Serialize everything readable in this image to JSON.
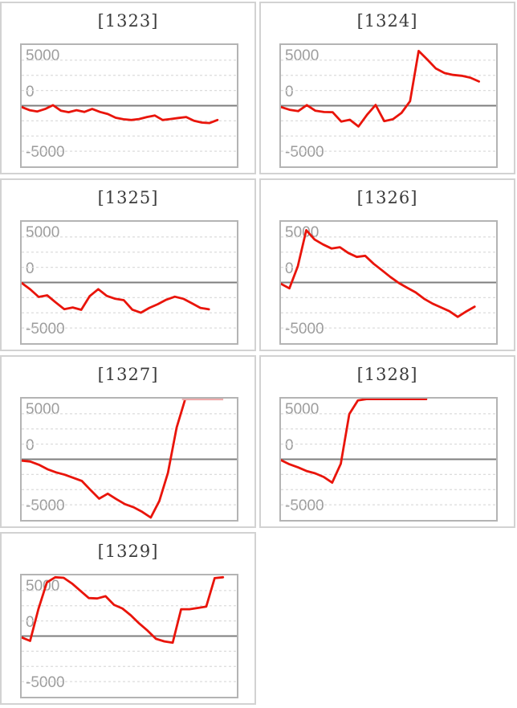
{
  "axis": {
    "labels": {
      "p5000": "5000",
      "zero": "0",
      "m5000": "-5000"
    },
    "yticks": [
      5000,
      0,
      -5000
    ],
    "ylim": [
      -6700,
      6700
    ],
    "grid_divisions": 8
  },
  "theme": {
    "line_color": "#e9140a",
    "cap_color": "#eeaaaa",
    "grid_color": "#dcdcdc",
    "zero_line_color": "#7e7e7e",
    "axis_label_color": "#9d9d9d",
    "title_color": "#3b3b3b",
    "plot_border_color": "#b4b4b4",
    "box_border_color": "#d2d2d2"
  },
  "chart_data": [
    {
      "type": "line",
      "title": "[1323]",
      "machine": "1323",
      "ylim": [
        -6700,
        6700
      ],
      "x_end_frac": 0.91,
      "values": [
        -150,
        -500,
        -640,
        -360,
        50,
        -550,
        -720,
        -500,
        -690,
        -360,
        -690,
        -920,
        -1330,
        -1500,
        -1580,
        -1470,
        -1250,
        -1080,
        -1580,
        -1470,
        -1360,
        -1250,
        -1670,
        -1860,
        -1920,
        -1580
      ]
    },
    {
      "type": "line",
      "title": "[1324]",
      "machine": "1324",
      "ylim": [
        -6700,
        6700
      ],
      "x_end_frac": 0.92,
      "values": [
        -150,
        -450,
        -600,
        60,
        -560,
        -700,
        -720,
        -1750,
        -1550,
        -2300,
        -1000,
        80,
        -1700,
        -1500,
        -800,
        500,
        6040,
        5100,
        4100,
        3600,
        3400,
        3300,
        3100,
        2670
      ]
    },
    {
      "type": "line",
      "title": "[1325]",
      "machine": "1325",
      "ylim": [
        -6700,
        6700
      ],
      "x_end_frac": 0.87,
      "values": [
        -50,
        -750,
        -1600,
        -1420,
        -2200,
        -2950,
        -2760,
        -3020,
        -1500,
        -740,
        -1480,
        -1800,
        -1950,
        -3000,
        -3340,
        -2800,
        -2400,
        -1900,
        -1570,
        -1800,
        -2300,
        -2800,
        -2960
      ]
    },
    {
      "type": "line",
      "title": "[1326]",
      "machine": "1326",
      "ylim": [
        -6700,
        6700
      ],
      "x_end_frac": 0.9,
      "values": [
        -150,
        -650,
        1800,
        5780,
        4740,
        4200,
        3750,
        3900,
        3260,
        2820,
        2950,
        2070,
        1350,
        600,
        -50,
        -590,
        -1100,
        -1800,
        -2330,
        -2750,
        -3170,
        -3800,
        -3200,
        -2670
      ]
    },
    {
      "type": "line",
      "title": "[1327]",
      "machine": "1327",
      "ylim": [
        -6700,
        6700
      ],
      "x_end_frac": 0.76,
      "values": [
        -150,
        -250,
        -600,
        -1100,
        -1450,
        -1700,
        -2050,
        -2400,
        -3400,
        -4350,
        -3800,
        -4400,
        -4950,
        -5300,
        -5800,
        -6430,
        -4600,
        -1500,
        3500,
        6650
      ],
      "cap": {
        "from": 0.745,
        "to": 0.937,
        "value": 6650,
        "color": "#eeaaaa"
      }
    },
    {
      "type": "line",
      "title": "[1328]",
      "machine": "1328",
      "ylim": [
        -6700,
        6700
      ],
      "x_end_frac": 0.675,
      "values": [
        -100,
        -550,
        -900,
        -1300,
        -1550,
        -1950,
        -2580,
        -500,
        5000,
        6500,
        6650,
        6650,
        6650,
        6650,
        6650,
        6650,
        6650,
        6650
      ]
    },
    {
      "type": "line",
      "title": "[1329]",
      "machine": "1329",
      "ylim": [
        -6700,
        6700
      ],
      "x_end_frac": 0.936,
      "values": [
        -150,
        -530,
        3000,
        5930,
        6500,
        6430,
        5800,
        5000,
        4200,
        4150,
        4400,
        3450,
        3050,
        2300,
        1400,
        600,
        -300,
        -590,
        -740,
        2960,
        2960,
        3110,
        3260,
        6400,
        6500
      ]
    }
  ]
}
